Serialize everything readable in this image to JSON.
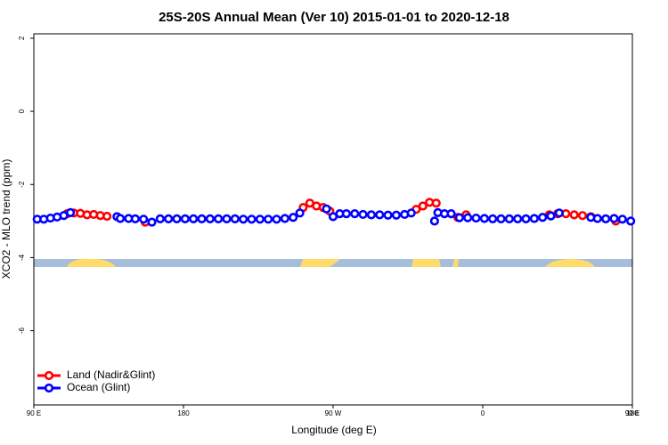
{
  "chart_data": {
    "type": "scatter",
    "title": "25S-20S Annual Mean (Ver 10)   2015-01-01 to 2020-12-18",
    "x_label": "Longitude (deg E)",
    "y_label": "XCO2 - MLO trend (ppm)",
    "xlim": [
      90,
      450
    ],
    "ylim": [
      -8.03,
      2.12
    ],
    "xticks": [
      {
        "value": 90,
        "label": "90 E"
      },
      {
        "value": 180,
        "label": "180"
      },
      {
        "value": 270,
        "label": "90 W"
      },
      {
        "value": 360,
        "label": "0"
      },
      {
        "value": 450,
        "label": "90 E"
      },
      {
        "value": 540,
        "label": "180"
      }
    ],
    "yticks": [
      2,
      0,
      -2,
      -4,
      -6
    ],
    "legend": "bottom-left",
    "series": [
      {
        "name": "Land (Nadir&Glint)",
        "color": "#ff0000",
        "x": [
          110,
          114,
          118,
          122,
          126,
          130,
          134,
          157,
          252,
          256,
          260,
          264,
          268,
          320,
          324,
          328,
          332,
          345,
          350,
          400,
          405,
          410,
          415,
          420,
          425,
          440
        ],
        "values": [
          -2.8,
          -2.78,
          -2.79,
          -2.83,
          -2.82,
          -2.85,
          -2.87,
          -3.03,
          -2.63,
          -2.51,
          -2.59,
          -2.63,
          -2.73,
          -2.68,
          -2.59,
          -2.49,
          -2.51,
          -2.9,
          -2.83,
          -2.83,
          -2.8,
          -2.8,
          -2.83,
          -2.85,
          -2.88,
          -3.0
        ]
      },
      {
        "name": "Ocean (Glint)",
        "color": "#0000ff",
        "x": [
          92,
          96,
          100,
          104,
          108,
          112,
          140,
          142,
          147,
          151,
          156,
          161,
          166,
          171,
          176,
          181,
          186,
          191,
          196,
          201,
          206,
          211,
          216,
          221,
          226,
          231,
          236,
          241,
          246,
          250,
          266,
          270,
          274,
          278,
          283,
          288,
          293,
          298,
          303,
          308,
          313,
          317,
          331,
          333,
          337,
          341,
          346,
          351,
          356,
          361,
          366,
          371,
          376,
          381,
          386,
          391,
          396,
          401,
          406,
          425,
          429,
          434,
          439,
          444,
          449
        ],
        "values": [
          -2.95,
          -2.95,
          -2.92,
          -2.89,
          -2.85,
          -2.77,
          -2.88,
          -2.93,
          -2.93,
          -2.94,
          -2.95,
          -3.03,
          -2.94,
          -2.94,
          -2.94,
          -2.94,
          -2.94,
          -2.94,
          -2.94,
          -2.94,
          -2.94,
          -2.94,
          -2.95,
          -2.95,
          -2.95,
          -2.95,
          -2.95,
          -2.93,
          -2.9,
          -2.78,
          -2.67,
          -2.88,
          -2.8,
          -2.8,
          -2.8,
          -2.82,
          -2.83,
          -2.83,
          -2.84,
          -2.84,
          -2.82,
          -2.78,
          -3.0,
          -2.77,
          -2.8,
          -2.8,
          -2.91,
          -2.91,
          -2.92,
          -2.93,
          -2.94,
          -2.94,
          -2.94,
          -2.94,
          -2.94,
          -2.93,
          -2.9,
          -2.86,
          -2.78,
          -2.9,
          -2.93,
          -2.94,
          -2.93,
          -2.95,
          -3.0
        ]
      }
    ]
  }
}
